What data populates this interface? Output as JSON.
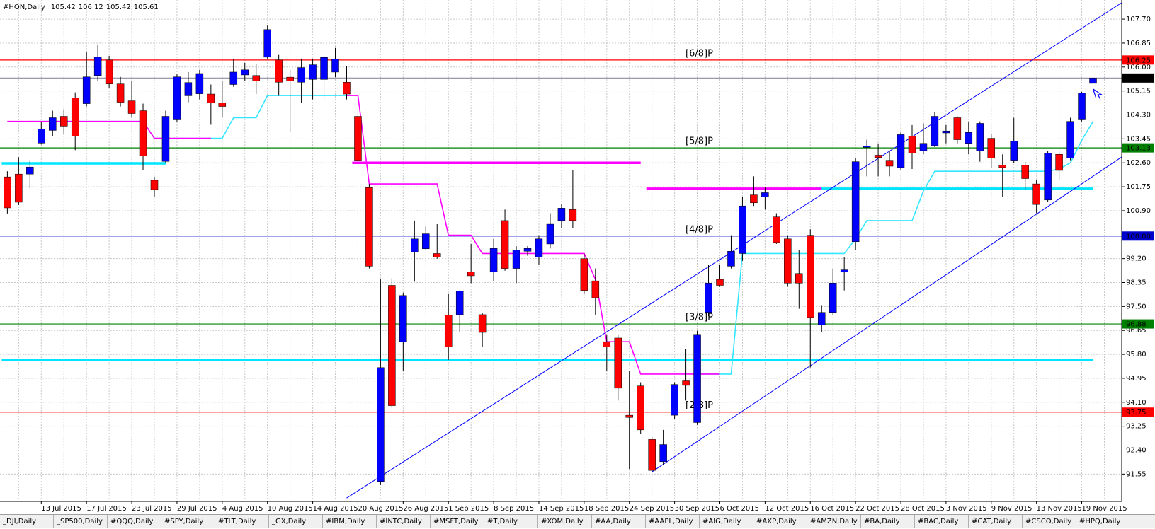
{
  "chart_data": {
    "type": "candlestick",
    "title": "#HON,Daily",
    "categories": [
      null,
      null,
      null,
      "13 Jul 2015",
      null,
      null,
      null,
      "17 Jul 2015",
      null,
      null,
      null,
      "23 Jul 2015",
      null,
      null,
      null,
      "29 Jul 2015",
      null,
      null,
      null,
      "4 Aug 2015",
      null,
      null,
      null,
      "10 Aug 2015",
      null,
      null,
      null,
      "14 Aug 2015",
      null,
      null,
      null,
      "20 Aug 2015",
      null,
      null,
      null,
      "26 Aug 2015",
      null,
      null,
      null,
      "1 Sep 2015",
      null,
      null,
      null,
      "8 Sep 2015",
      null,
      null,
      null,
      "14 Sep 2015",
      null,
      null,
      null,
      "18 Sep 2015",
      null,
      null,
      null,
      "24 Sep 2015",
      null,
      null,
      null,
      "30 Sep 2015",
      null,
      null,
      null,
      "6 Oct 2015",
      null,
      null,
      null,
      "12 Oct 2015",
      null,
      null,
      null,
      "16 Oct 2015",
      null,
      null,
      null,
      "22 Oct 2015",
      null,
      null,
      null,
      "28 Oct 2015",
      null,
      null,
      null,
      "3 Nov 2015",
      null,
      null,
      null,
      "9 Nov 2015",
      null,
      null,
      null,
      "13 Nov 2015",
      null,
      null,
      null,
      "19 Nov 2015",
      null
    ],
    "open": [
      102.1,
      102.2,
      102.2,
      103.3,
      103.75,
      104.25,
      104.9,
      104.7,
      105.7,
      106.25,
      105.4,
      104.8,
      104.45,
      101.98,
      102.65,
      104.15,
      104.98,
      105.05,
      105.04,
      104.73,
      105.38,
      105.72,
      105.7,
      106.35,
      106.25,
      105.64,
      105.46,
      105.56,
      105.56,
      105.82,
      105.46,
      104.25,
      101.72,
      91.29,
      98.25,
      96.25,
      99.44,
      99.55,
      99.38,
      97.2,
      97.21,
      98.72,
      97.21,
      98.72,
      100.55,
      98.85,
      99.46,
      99.25,
      99.72,
      100.55,
      100.94,
      99.2,
      98.41,
      96.25,
      96.38,
      93.64,
      94.68,
      92.78,
      91.99,
      93.64,
      94.86,
      93.38,
      97.29,
      98.46,
      98.93,
      99.38,
      101.46,
      101.39,
      100.68,
      99.9,
      98.67,
      100.03,
      96.85,
      97.29,
      98.72,
      99.8,
      103.15,
      102.87,
      102.69,
      102.43,
      103.55,
      103.03,
      103.21,
      103.66,
      104.2,
      103.29,
      103.03,
      103.47,
      102.51,
      102.69,
      102.51,
      101.85,
      101.28,
      102.9,
      102.77,
      104.15,
      105.42
    ],
    "high": [
      102.3,
      102.8,
      102.7,
      104.05,
      104.45,
      104.5,
      105.1,
      106.55,
      106.8,
      106.4,
      105.65,
      105.5,
      104.7,
      102.1,
      104.45,
      105.75,
      105.82,
      105.9,
      105.38,
      105.5,
      106.3,
      106.15,
      106.1,
      107.47,
      106.43,
      105.9,
      106.3,
      106.3,
      106.42,
      106.68,
      106.03,
      104.46,
      101.85,
      98.46,
      98.5,
      97.99,
      100.55,
      100.34,
      100.42,
      97.94,
      98.07,
      99.72,
      97.28,
      99.9,
      100.94,
      99.64,
      99.64,
      100.03,
      100.81,
      101.12,
      102.33,
      99.38,
      98.85,
      96.51,
      96.51,
      95.2,
      94.81,
      92.86,
      93.12,
      94.81,
      95.98,
      96.64,
      98.98,
      98.98,
      100.03,
      101.39,
      102.12,
      101.72,
      100.81,
      100.03,
      99.51,
      100.24,
      97.55,
      98.85,
      99.25,
      102.77,
      103.42,
      103.29,
      103.03,
      103.68,
      103.94,
      104.0,
      104.41,
      103.94,
      104.25,
      104.07,
      104.07,
      103.63,
      102.9,
      104.2,
      102.64,
      101.98,
      103.03,
      103.03,
      104.2,
      105.12,
      106.12
    ],
    "low": [
      100.8,
      101.1,
      101.7,
      103.25,
      103.55,
      103.6,
      103.05,
      104.6,
      105.5,
      105.25,
      104.6,
      104.2,
      102.35,
      101.4,
      102.6,
      104.05,
      104.75,
      104.85,
      103.95,
      104.2,
      105.3,
      105.5,
      105.04,
      106.3,
      104.98,
      103.7,
      104.73,
      104.85,
      104.85,
      105.64,
      104.85,
      102.64,
      98.85,
      91.16,
      93.9,
      95.2,
      98.38,
      99.5,
      99.2,
      95.6,
      96.58,
      98.33,
      96.06,
      98.4,
      98.77,
      98.33,
      99.3,
      98.98,
      99.56,
      100.29,
      100.29,
      97.94,
      97.21,
      95.2,
      94.16,
      91.73,
      92.99,
      91.63,
      91.89,
      93.51,
      94.16,
      93.3,
      97.16,
      98.2,
      98.85,
      99.12,
      101.07,
      100.94,
      99.72,
      98.2,
      97.42,
      95.33,
      96.58,
      97.21,
      98.07,
      99.51,
      102.12,
      102.12,
      102.12,
      102.33,
      102.38,
      102.9,
      103.16,
      103.29,
      103.29,
      102.9,
      102.64,
      102.43,
      101.39,
      102.59,
      101.65,
      100.81,
      101.2,
      101.98,
      102.69,
      104.07,
      105.42
    ],
    "close": [
      101.0,
      101.2,
      102.45,
      103.8,
      104.2,
      103.9,
      103.55,
      105.65,
      106.35,
      105.4,
      104.75,
      104.35,
      102.85,
      101.65,
      104.25,
      105.65,
      105.45,
      105.77,
      104.73,
      104.6,
      105.82,
      105.9,
      105.5,
      107.33,
      105.46,
      105.5,
      105.98,
      106.08,
      106.34,
      106.29,
      105.04,
      102.69,
      98.93,
      95.33,
      93.98,
      97.89,
      99.9,
      100.08,
      99.25,
      96.06,
      98.05,
      98.59,
      96.58,
      99.56,
      98.85,
      99.5,
      99.56,
      99.9,
      100.42,
      100.99,
      100.55,
      98.07,
      97.81,
      96.06,
      94.6,
      93.56,
      93.12,
      91.68,
      92.6,
      94.73,
      94.7,
      96.51,
      98.33,
      98.25,
      99.46,
      101.07,
      101.18,
      101.54,
      99.77,
      98.33,
      98.33,
      97.11,
      97.29,
      98.33,
      98.8,
      102.64,
      103.2,
      102.79,
      102.48,
      103.6,
      102.95,
      103.29,
      104.25,
      103.73,
      103.42,
      103.68,
      104.0,
      102.77,
      102.43,
      103.37,
      102.04,
      101.12,
      102.95,
      102.33,
      104.07,
      105.07,
      105.61
    ],
    "up_color": "#0000ff",
    "down_color": "#ff0000",
    "wick_color": "#000000",
    "ylim": [
      90.58,
      108.38
    ],
    "yticks": [
      {
        "value": 107.7,
        "label": "107.70"
      },
      106.85,
      {
        "value": 106.0,
        "label": "106.00"
      },
      105.15,
      {
        "value": 104.3,
        "label": "104.30"
      },
      103.45,
      {
        "value": 102.6,
        "label": "102.60"
      },
      101.75,
      {
        "value": 100.9,
        "label": "100.90"
      },
      {
        "value": 99.2,
        "label": "99.20"
      },
      98.35,
      {
        "value": 97.5,
        "label": "97.50"
      },
      96.65,
      {
        "value": 95.8,
        "label": "95.80"
      },
      94.95,
      {
        "value": 94.1,
        "label": "94.10"
      },
      93.25,
      {
        "value": 92.4,
        "label": "92.40"
      },
      91.55
    ],
    "grid": true,
    "series": [
      {
        "color": "#33e6ff",
        "values": [
          null,
          null,
          104.07,
          104.07,
          104.07,
          104.07,
          104.07,
          104.07,
          104.07,
          104.07,
          104.07,
          104.07,
          104.07,
          103.47,
          103.47,
          103.47,
          103.47,
          103.47,
          103.47,
          103.47,
          104.2,
          104.2,
          104.2,
          104.99,
          104.99,
          104.99,
          104.99,
          104.99,
          104.99,
          104.99,
          104.99,
          null,
          null,
          null,
          null,
          null,
          null,
          null,
          null,
          null,
          null,
          null,
          null,
          null,
          null,
          null,
          null,
          null,
          null,
          null,
          null,
          null,
          null,
          null,
          null,
          null,
          null,
          null,
          null,
          null,
          null,
          95.1,
          95.1,
          95.1,
          95.1,
          99.38,
          99.38,
          99.38,
          99.38,
          99.38,
          99.38,
          99.38,
          99.38,
          99.38,
          99.38,
          99.9,
          100.55,
          100.55,
          100.55,
          100.55,
          100.55,
          101.6,
          102.3,
          102.3,
          102.3,
          102.3,
          102.3,
          102.3,
          102.3,
          102.3,
          102.3,
          102.3,
          102.3,
          102.38,
          102.6,
          103.4,
          104.07
        ]
      },
      {
        "color": "#ff00ff",
        "values": [
          104.07,
          104.07,
          104.07,
          104.07,
          104.07,
          104.07,
          104.07,
          104.07,
          104.07,
          104.07,
          104.07,
          104.07,
          104.07,
          103.47,
          103.47,
          103.47,
          103.47,
          103.47,
          103.47,
          null,
          null,
          null,
          null,
          null,
          null,
          null,
          null,
          null,
          null,
          null,
          104.99,
          104.99,
          101.85,
          101.85,
          101.85,
          101.85,
          101.85,
          101.85,
          101.85,
          100.03,
          100.03,
          100.03,
          99.38,
          99.38,
          99.38,
          99.38,
          99.38,
          99.38,
          99.38,
          99.38,
          99.38,
          99.38,
          98.46,
          96.25,
          96.25,
          96.25,
          95.1,
          95.1,
          95.1,
          95.1,
          95.1,
          95.1,
          95.1,
          95.1,
          null,
          null,
          null,
          null,
          null,
          null,
          null,
          null,
          null,
          null,
          null,
          null,
          null,
          null,
          null,
          null,
          null,
          null,
          null,
          null,
          null,
          null,
          null,
          null,
          null,
          null,
          null,
          null,
          null,
          null,
          null,
          null,
          null
        ]
      }
    ],
    "segments": [
      {
        "color": "#00e5ff",
        "x": [
          0,
          14
        ],
        "value": 102.58
      },
      {
        "color": "#00e5ff",
        "x": [
          0,
          96
        ],
        "value": 95.6
      },
      {
        "color": "#00e5ff",
        "x": [
          72,
          96
        ],
        "value": 101.68
      },
      {
        "color": "#ff00ff",
        "x": [
          31,
          56
        ],
        "value": 102.6
      },
      {
        "color": "#ff00ff",
        "x": [
          57,
          72
        ],
        "value": 101.68
      }
    ],
    "trendlines": [
      {
        "color": "#0000ff",
        "x": [
          30,
          99
        ],
        "y": [
          90.7,
          108.4
        ]
      },
      {
        "color": "#0000ff",
        "x": [
          57,
          100
        ],
        "y": [
          91.63,
          103.2
        ]
      }
    ],
    "levels": [
      {
        "value": 106.25,
        "name": "[6/8]P",
        "color": "#ff0000",
        "box_color": "#ff0000"
      },
      {
        "value": 105.61,
        "color": "#8c8ca6",
        "box_color": "#000000"
      },
      {
        "value": 103.13,
        "name": "[5/8]P",
        "color": "#008000",
        "box_color": "#008000"
      },
      {
        "value": 100,
        "label": "100.00",
        "name": "[4/8]P",
        "color": "#0000cd",
        "box_color": "#0000cd"
      },
      {
        "value": 96.88,
        "name": "[3/8]P",
        "color": "#008000",
        "box_color": "#008000"
      },
      {
        "value": 93.75,
        "name": "[2/8]P",
        "color": "#ff0000",
        "box_color": "#ff0000"
      }
    ]
  },
  "tabs": [
    "_DJI,Daily",
    "_SP500,Daily",
    "#QQQ,Daily",
    "#SPY,Daily",
    "#TLT,Daily",
    "_GX,Daily",
    "#IBM,Daily",
    "#INTC,Daily",
    "#MSFT,Daily",
    "#T,Daily",
    "#XOM,Daily",
    "#AA,Daily",
    "#AAPL,Daily",
    "#AIG,Daily",
    "#AXP,Daily",
    "#AMZN,Daily",
    "#BA,Daily",
    "#BAC,Daily",
    "#CAT,Daily",
    "#CSCO,Daily",
    "#HPQ,Daily"
  ]
}
